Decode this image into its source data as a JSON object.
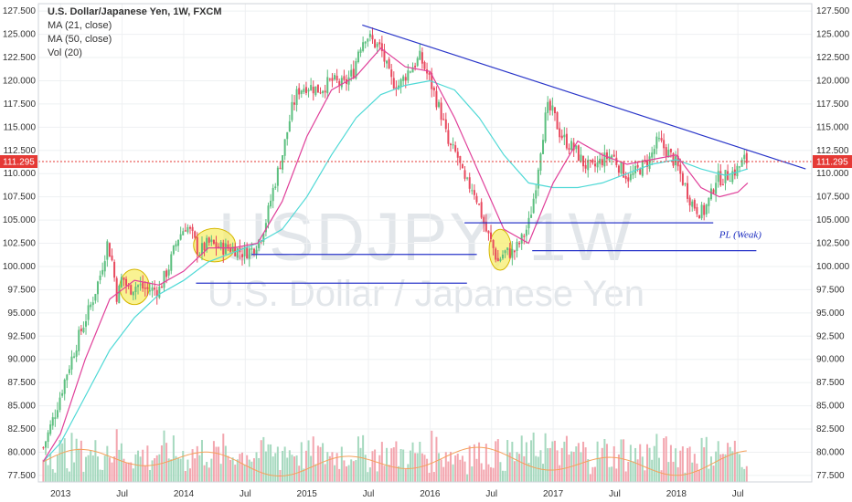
{
  "legend": {
    "title": "U.S. Dollar/Japanese Yen, 1W, FXCM",
    "ma21": "MA (21, close)",
    "ma50": "MA (50, close)",
    "vol": "Vol (20)"
  },
  "watermark": {
    "symbol": "USDJPY, 1W",
    "name": "U.S. Dollar / Japanese Yen"
  },
  "colors": {
    "up": "#5cbf7f",
    "down": "#e8495e",
    "vol_up": "#a6d9bf",
    "vol_down": "#f3a6af",
    "ma21": "#e0409a",
    "ma50": "#4fd9d6",
    "volma": "#f5a05a",
    "trend": "#2a36c9",
    "price_line": "#e53935",
    "ellipse_fill": "#f7ee6e",
    "ellipse_stroke": "#d6b600"
  },
  "chart_data": {
    "type": "candlestick",
    "symbol": "U.S. Dollar/Japanese Yen, 1W, FXCM",
    "last_price": "111.295",
    "x_ticks": [
      "2013",
      "Jul",
      "2014",
      "Jul",
      "2015",
      "Jul",
      "2016",
      "Jul",
      "2017",
      "Jul",
      "2018",
      "Jul"
    ],
    "x_tick_time": [
      2013.0,
      2013.5,
      2014.0,
      2014.5,
      2015.0,
      2015.5,
      2016.0,
      2016.5,
      2017.0,
      2017.5,
      2018.0,
      2018.5
    ],
    "x_range": [
      2012.82,
      2019.1
    ],
    "y_ticks": [
      "77.500",
      "80.000",
      "82.500",
      "85.000",
      "87.500",
      "90.000",
      "92.500",
      "95.000",
      "97.500",
      "100.000",
      "102.500",
      "105.000",
      "107.500",
      "110.000",
      "112.500",
      "115.000",
      "117.500",
      "120.000",
      "122.500",
      "125.000",
      "127.500"
    ],
    "y_range": [
      76.8,
      128.3
    ],
    "price_path": [
      [
        2012.86,
        80.5
      ],
      [
        2012.95,
        84.0
      ],
      [
        2013.05,
        88.5
      ],
      [
        2013.15,
        92.5
      ],
      [
        2013.25,
        96.0
      ],
      [
        2013.32,
        99.0
      ],
      [
        2013.38,
        102.5
      ],
      [
        2013.42,
        100.5
      ],
      [
        2013.46,
        96.5
      ],
      [
        2013.5,
        99.0
      ],
      [
        2013.55,
        97.5
      ],
      [
        2013.62,
        98.0
      ],
      [
        2013.7,
        97.5
      ],
      [
        2013.8,
        97.5
      ],
      [
        2013.88,
        100.0
      ],
      [
        2013.95,
        103.0
      ],
      [
        2014.02,
        104.5
      ],
      [
        2014.08,
        103.0
      ],
      [
        2014.12,
        101.5
      ],
      [
        2014.2,
        102.5
      ],
      [
        2014.3,
        102.0
      ],
      [
        2014.4,
        102.0
      ],
      [
        2014.48,
        101.5
      ],
      [
        2014.55,
        101.8
      ],
      [
        2014.62,
        103.0
      ],
      [
        2014.68,
        105.5
      ],
      [
        2014.72,
        108.0
      ],
      [
        2014.8,
        112.0
      ],
      [
        2014.88,
        117.0
      ],
      [
        2014.93,
        119.0
      ],
      [
        2015.0,
        119.5
      ],
      [
        2015.1,
        119.0
      ],
      [
        2015.2,
        120.0
      ],
      [
        2015.3,
        119.5
      ],
      [
        2015.38,
        121.0
      ],
      [
        2015.42,
        123.5
      ],
      [
        2015.48,
        125.0
      ],
      [
        2015.55,
        124.0
      ],
      [
        2015.6,
        123.5
      ],
      [
        2015.68,
        120.0
      ],
      [
        2015.75,
        119.5
      ],
      [
        2015.82,
        121.0
      ],
      [
        2015.92,
        122.5
      ],
      [
        2016.0,
        120.0
      ],
      [
        2016.05,
        118.0
      ],
      [
        2016.1,
        116.0
      ],
      [
        2016.15,
        113.0
      ],
      [
        2016.22,
        112.0
      ],
      [
        2016.28,
        109.0
      ],
      [
        2016.35,
        108.5
      ],
      [
        2016.4,
        106.5
      ],
      [
        2016.45,
        104.0
      ],
      [
        2016.5,
        102.5
      ],
      [
        2016.55,
        100.5
      ],
      [
        2016.6,
        101.5
      ],
      [
        2016.68,
        101.5
      ],
      [
        2016.75,
        103.0
      ],
      [
        2016.8,
        104.5
      ],
      [
        2016.85,
        108.0
      ],
      [
        2016.9,
        113.0
      ],
      [
        2016.95,
        117.0
      ],
      [
        2017.0,
        116.5
      ],
      [
        2017.05,
        114.5
      ],
      [
        2017.1,
        113.5
      ],
      [
        2017.18,
        112.5
      ],
      [
        2017.25,
        111.0
      ],
      [
        2017.32,
        110.5
      ],
      [
        2017.4,
        111.5
      ],
      [
        2017.48,
        112.0
      ],
      [
        2017.55,
        110.5
      ],
      [
        2017.62,
        109.5
      ],
      [
        2017.7,
        110.5
      ],
      [
        2017.78,
        111.5
      ],
      [
        2017.85,
        113.5
      ],
      [
        2017.92,
        112.5
      ],
      [
        2018.0,
        111.0
      ],
      [
        2018.06,
        109.0
      ],
      [
        2018.12,
        107.0
      ],
      [
        2018.18,
        106.0
      ],
      [
        2018.22,
        105.8
      ],
      [
        2018.28,
        107.5
      ],
      [
        2018.32,
        109.5
      ],
      [
        2018.38,
        109.5
      ],
      [
        2018.44,
        110.0
      ],
      [
        2018.5,
        110.5
      ],
      [
        2018.55,
        111.5
      ],
      [
        2018.58,
        111.3
      ]
    ],
    "ma21_path": [
      [
        2012.86,
        79.0
      ],
      [
        2013.0,
        82.0
      ],
      [
        2013.2,
        90.0
      ],
      [
        2013.4,
        96.5
      ],
      [
        2013.6,
        98.5
      ],
      [
        2013.8,
        98.0
      ],
      [
        2014.0,
        99.5
      ],
      [
        2014.2,
        102.0
      ],
      [
        2014.4,
        102.0
      ],
      [
        2014.6,
        102.5
      ],
      [
        2014.8,
        107.0
      ],
      [
        2015.0,
        114.0
      ],
      [
        2015.2,
        119.0
      ],
      [
        2015.4,
        120.5
      ],
      [
        2015.6,
        123.5
      ],
      [
        2015.8,
        121.5
      ],
      [
        2016.0,
        121.0
      ],
      [
        2016.2,
        116.0
      ],
      [
        2016.4,
        110.0
      ],
      [
        2016.6,
        104.0
      ],
      [
        2016.8,
        102.5
      ],
      [
        2017.0,
        109.0
      ],
      [
        2017.2,
        113.5
      ],
      [
        2017.4,
        112.0
      ],
      [
        2017.6,
        111.0
      ],
      [
        2017.8,
        111.5
      ],
      [
        2018.0,
        112.0
      ],
      [
        2018.2,
        108.5
      ],
      [
        2018.35,
        107.5
      ],
      [
        2018.5,
        108.0
      ],
      [
        2018.58,
        109.0
      ]
    ],
    "ma50_path": [
      [
        2012.86,
        79.0
      ],
      [
        2013.0,
        81.0
      ],
      [
        2013.2,
        86.0
      ],
      [
        2013.4,
        91.0
      ],
      [
        2013.6,
        94.5
      ],
      [
        2013.8,
        97.0
      ],
      [
        2014.0,
        98.5
      ],
      [
        2014.2,
        100.5
      ],
      [
        2014.4,
        101.5
      ],
      [
        2014.6,
        102.5
      ],
      [
        2014.8,
        104.0
      ],
      [
        2015.0,
        107.5
      ],
      [
        2015.2,
        112.0
      ],
      [
        2015.4,
        116.0
      ],
      [
        2015.6,
        118.5
      ],
      [
        2015.8,
        119.5
      ],
      [
        2016.0,
        120.0
      ],
      [
        2016.2,
        119.0
      ],
      [
        2016.4,
        116.0
      ],
      [
        2016.6,
        112.0
      ],
      [
        2016.8,
        109.0
      ],
      [
        2017.0,
        108.5
      ],
      [
        2017.2,
        108.5
      ],
      [
        2017.4,
        109.0
      ],
      [
        2017.6,
        110.0
      ],
      [
        2017.8,
        111.0
      ],
      [
        2018.0,
        111.5
      ],
      [
        2018.2,
        110.5
      ],
      [
        2018.4,
        109.8
      ],
      [
        2018.58,
        110.5
      ]
    ],
    "trendline": [
      [
        2015.45,
        126.0
      ],
      [
        2019.05,
        110.5
      ]
    ],
    "support_lines": [
      {
        "from": 2014.1,
        "to": 2016.3,
        "y": 98.2
      },
      {
        "from": 2014.55,
        "to": 2016.38,
        "y": 101.3
      },
      {
        "from": 2016.28,
        "to": 2018.3,
        "y": 104.7
      },
      {
        "from": 2016.83,
        "to": 2018.65,
        "y": 101.7
      }
    ],
    "ellipses": [
      {
        "t": 2013.6,
        "y": 97.8,
        "dt": 0.12,
        "dy": 1.9
      },
      {
        "t": 2014.25,
        "y": 102.3,
        "dt": 0.17,
        "dy": 1.8
      },
      {
        "t": 2016.57,
        "y": 101.8,
        "dt": 0.09,
        "dy": 2.2
      }
    ],
    "annotations": [
      {
        "text": "PL (Weak)",
        "t": 2018.52,
        "y": 103.1
      }
    ],
    "volume_max": 87.0
  }
}
